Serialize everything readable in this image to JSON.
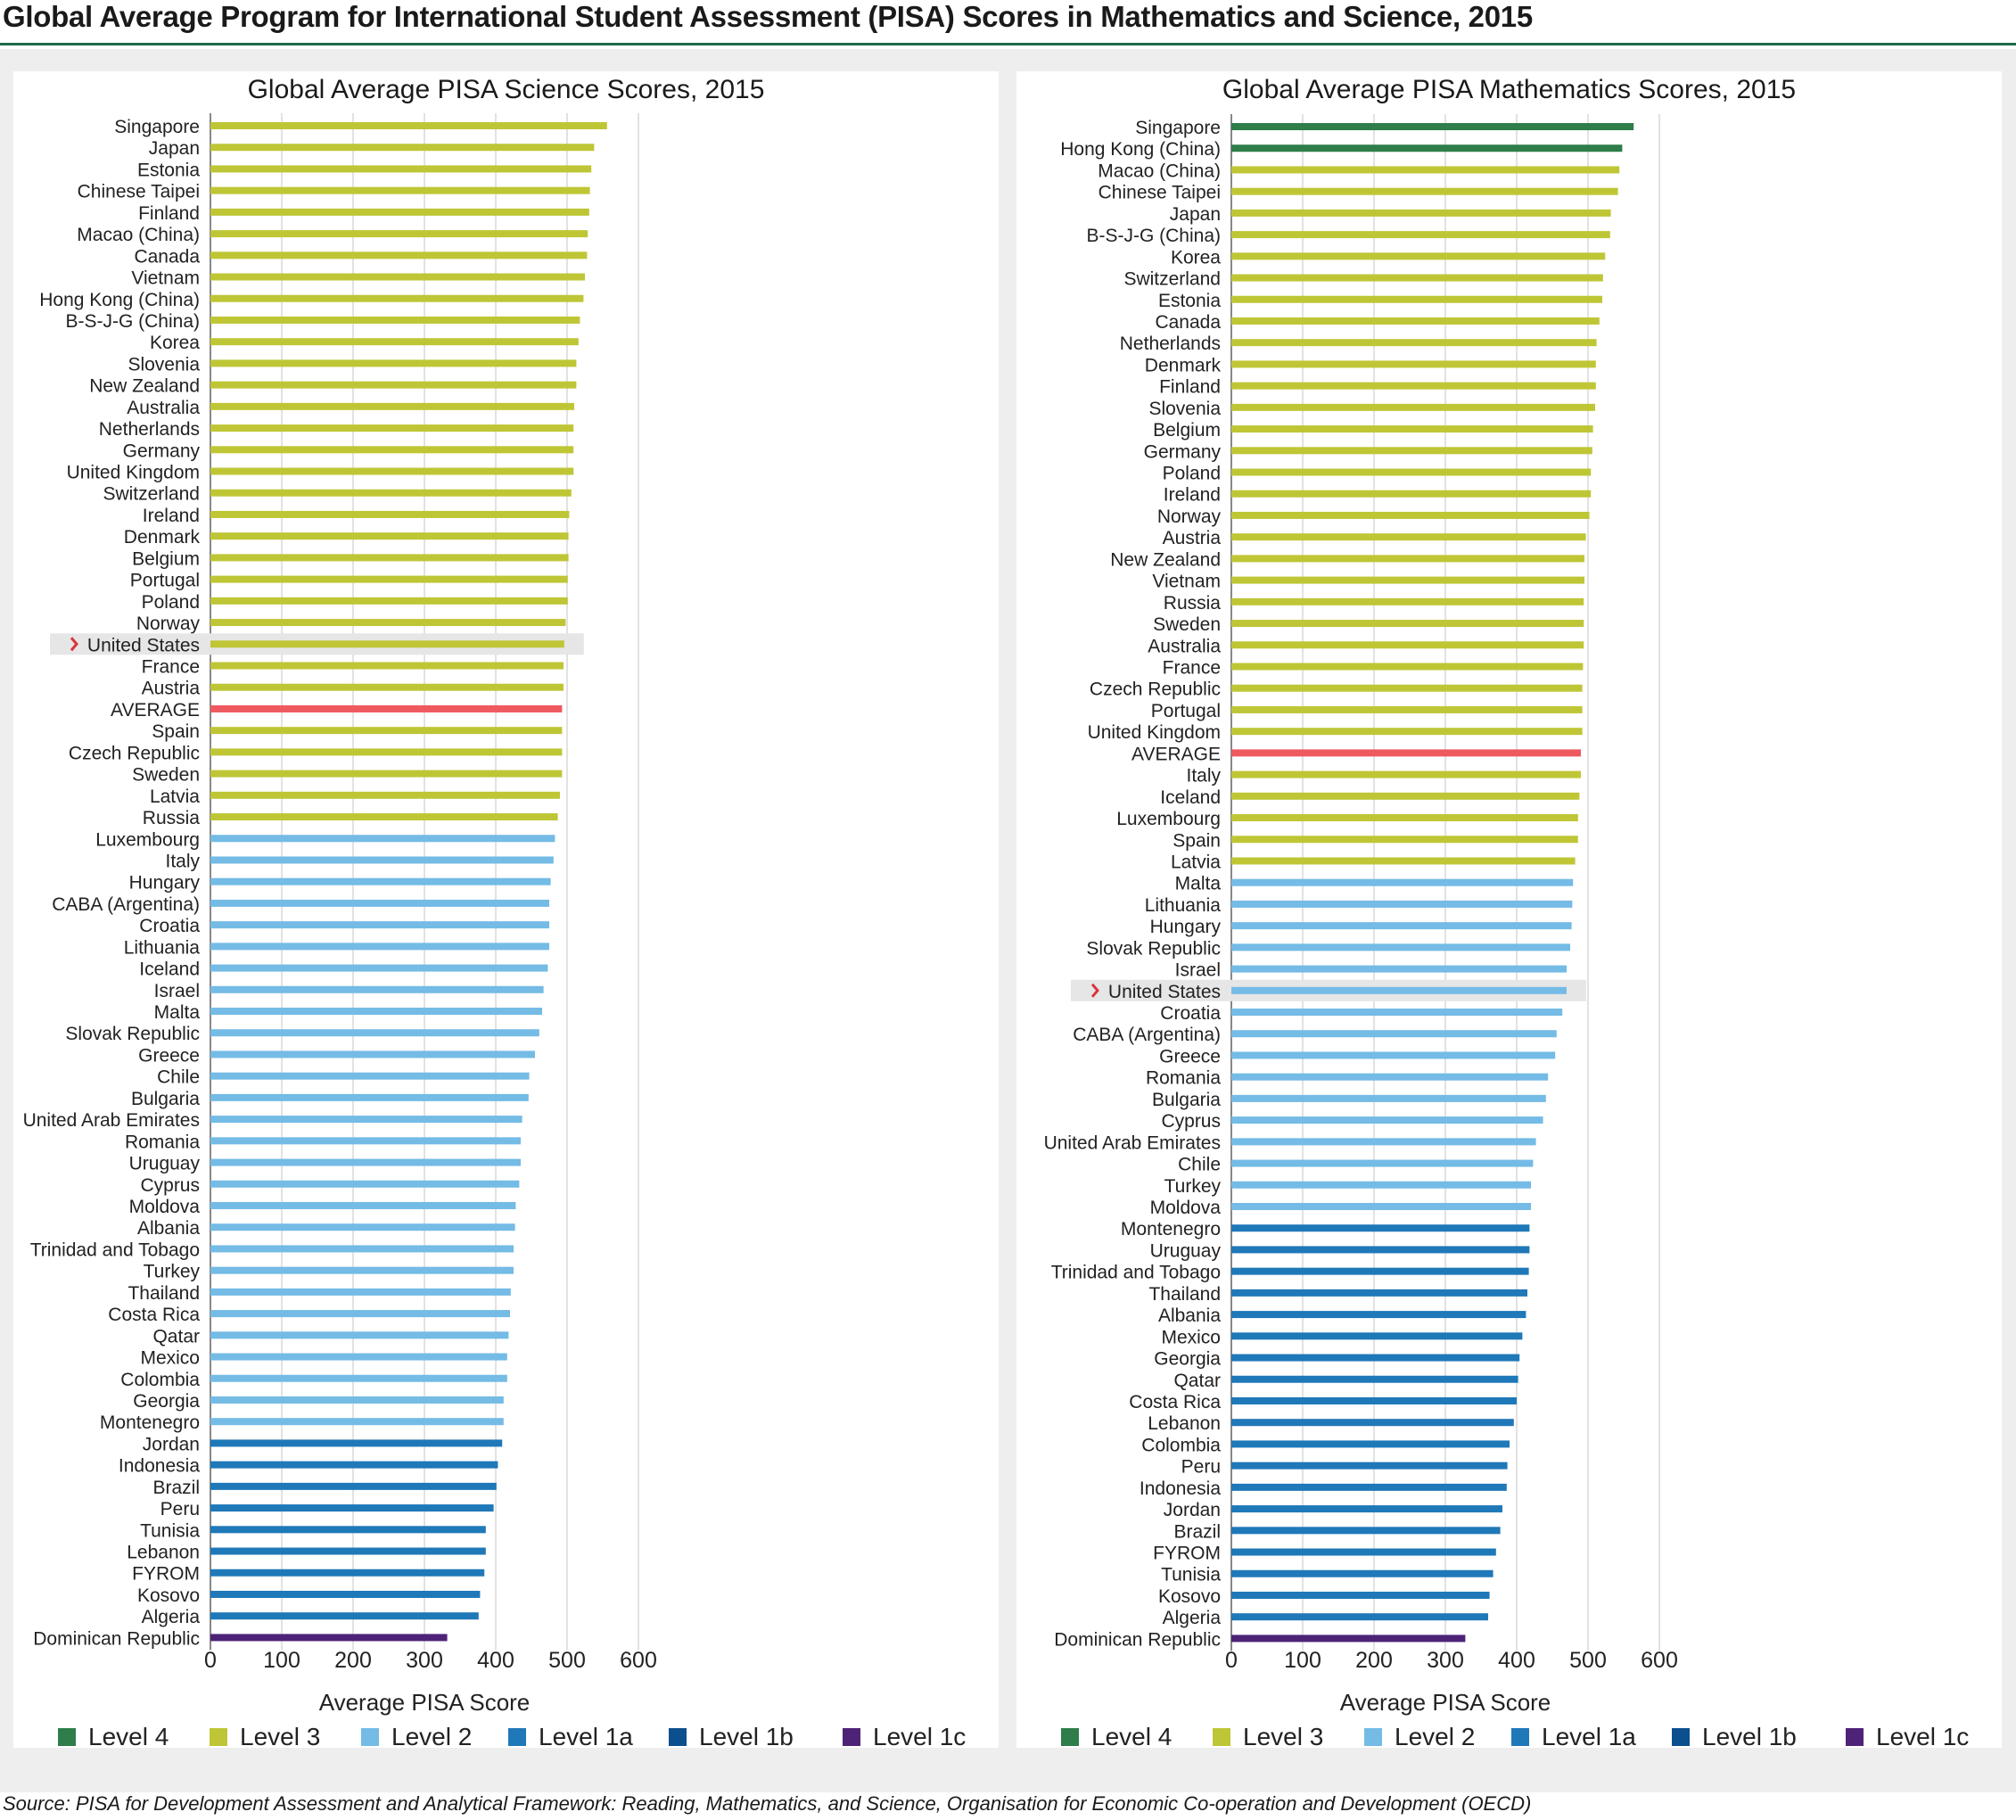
{
  "page": {
    "title": "Global Average Program for International Student Assessment (PISA) Scores in Mathematics and Science, 2015",
    "source": "Source: PISA for Development Assessment and Analytical Framework: Reading, Mathematics, and Science, Organisation for Economic Co-operation and Development (OECD)"
  },
  "colors": {
    "Level 4": "#2e7d4a",
    "Level 3": "#bfc636",
    "Level 2": "#74bbe6",
    "Level 1a": "#1f78b8",
    "Level 1b": "#0c4f8e",
    "Level 1c": "#4e2377",
    "AVERAGE": "#ee5a5f",
    "highlight": "#e6e6e6",
    "marker": "#d9343c"
  },
  "chart_data": [
    {
      "type": "bar",
      "orientation": "horizontal",
      "title": "Global Average PISA Science Scores, 2015",
      "xlabel": "Average PISA Score",
      "xlim": [
        0,
        600
      ],
      "xticks": [
        0,
        100,
        200,
        300,
        400,
        500,
        600
      ],
      "highlight": "United States",
      "legend": [
        "Level 4",
        "Level 3",
        "Level 2",
        "Level 1a",
        "Level 1b",
        "Level 1c"
      ],
      "categories": [
        "Singapore",
        "Japan",
        "Estonia",
        "Chinese Taipei",
        "Finland",
        "Macao (China)",
        "Canada",
        "Vietnam",
        "Hong Kong (China)",
        "B-S-J-G (China)",
        "Korea",
        "Slovenia",
        "New Zealand",
        "Australia",
        "Netherlands",
        "Germany",
        "United Kingdom",
        "Switzerland",
        "Ireland",
        "Denmark",
        "Belgium",
        "Portugal",
        "Poland",
        "Norway",
        "United States",
        "France",
        "Austria",
        "AVERAGE",
        "Spain",
        "Czech Republic",
        "Sweden",
        "Latvia",
        "Russia",
        "Luxembourg",
        "Italy",
        "Hungary",
        "CABA (Argentina)",
        "Croatia",
        "Lithuania",
        "Iceland",
        "Israel",
        "Malta",
        "Slovak Republic",
        "Greece",
        "Chile",
        "Bulgaria",
        "United Arab Emirates",
        "Romania",
        "Uruguay",
        "Cyprus",
        "Moldova",
        "Albania",
        "Trinidad and Tobago",
        "Turkey",
        "Thailand",
        "Costa Rica",
        "Qatar",
        "Mexico",
        "Colombia",
        "Georgia",
        "Montenegro",
        "Jordan",
        "Indonesia",
        "Brazil",
        "Peru",
        "Tunisia",
        "Lebanon",
        "FYROM",
        "Kosovo",
        "Algeria",
        "Dominican Republic"
      ],
      "values": [
        556,
        538,
        534,
        532,
        531,
        529,
        528,
        525,
        523,
        518,
        516,
        513,
        513,
        510,
        509,
        509,
        509,
        506,
        503,
        502,
        502,
        501,
        501,
        498,
        496,
        495,
        495,
        493,
        493,
        493,
        493,
        490,
        487,
        483,
        481,
        477,
        475,
        475,
        475,
        473,
        467,
        465,
        461,
        455,
        447,
        446,
        437,
        435,
        435,
        433,
        428,
        427,
        425,
        425,
        421,
        420,
        418,
        416,
        416,
        411,
        411,
        409,
        403,
        401,
        397,
        386,
        386,
        384,
        378,
        376,
        332
      ],
      "levels": [
        "Level 3",
        "Level 3",
        "Level 3",
        "Level 3",
        "Level 3",
        "Level 3",
        "Level 3",
        "Level 3",
        "Level 3",
        "Level 3",
        "Level 3",
        "Level 3",
        "Level 3",
        "Level 3",
        "Level 3",
        "Level 3",
        "Level 3",
        "Level 3",
        "Level 3",
        "Level 3",
        "Level 3",
        "Level 3",
        "Level 3",
        "Level 3",
        "Level 3",
        "Level 3",
        "Level 3",
        "AVERAGE",
        "Level 3",
        "Level 3",
        "Level 3",
        "Level 3",
        "Level 3",
        "Level 2",
        "Level 2",
        "Level 2",
        "Level 2",
        "Level 2",
        "Level 2",
        "Level 2",
        "Level 2",
        "Level 2",
        "Level 2",
        "Level 2",
        "Level 2",
        "Level 2",
        "Level 2",
        "Level 2",
        "Level 2",
        "Level 2",
        "Level 2",
        "Level 2",
        "Level 2",
        "Level 2",
        "Level 2",
        "Level 2",
        "Level 2",
        "Level 2",
        "Level 2",
        "Level 2",
        "Level 2",
        "Level 1a",
        "Level 1a",
        "Level 1a",
        "Level 1a",
        "Level 1a",
        "Level 1a",
        "Level 1a",
        "Level 1a",
        "Level 1a",
        "Level 1c"
      ]
    },
    {
      "type": "bar",
      "orientation": "horizontal",
      "title": "Global Average PISA Mathematics Scores, 2015",
      "xlabel": "Average PISA Score",
      "xlim": [
        0,
        600
      ],
      "xticks": [
        0,
        100,
        200,
        300,
        400,
        500,
        600
      ],
      "highlight": "United States",
      "legend": [
        "Level 4",
        "Level 3",
        "Level 2",
        "Level 1a",
        "Level 1b",
        "Level 1c"
      ],
      "categories": [
        "Singapore",
        "Hong Kong (China)",
        "Macao (China)",
        "Chinese Taipei",
        "Japan",
        "B-S-J-G (China)",
        "Korea",
        "Switzerland",
        "Estonia",
        "Canada",
        "Netherlands",
        "Denmark",
        "Finland",
        "Slovenia",
        "Belgium",
        "Germany",
        "Poland",
        "Ireland",
        "Norway",
        "Austria",
        "New Zealand",
        "Vietnam",
        "Russia",
        "Sweden",
        "Australia",
        "France",
        "Czech Republic",
        "Portugal",
        "United Kingdom",
        "AVERAGE",
        "Italy",
        "Iceland",
        "Luxembourg",
        "Spain",
        "Latvia",
        "Malta",
        "Lithuania",
        "Hungary",
        "Slovak Republic",
        "Israel",
        "United States",
        "Croatia",
        "CABA (Argentina)",
        "Greece",
        "Romania",
        "Bulgaria",
        "Cyprus",
        "United Arab Emirates",
        "Chile",
        "Turkey",
        "Moldova",
        "Montenegro",
        "Uruguay",
        "Trinidad and Tobago",
        "Thailand",
        "Albania",
        "Mexico",
        "Georgia",
        "Qatar",
        "Costa Rica",
        "Lebanon",
        "Colombia",
        "Peru",
        "Indonesia",
        "Jordan",
        "Brazil",
        "FYROM",
        "Tunisia",
        "Kosovo",
        "Algeria",
        "Dominican Republic"
      ],
      "values": [
        564,
        548,
        544,
        542,
        532,
        531,
        524,
        521,
        520,
        516,
        512,
        511,
        511,
        510,
        507,
        506,
        504,
        504,
        502,
        497,
        495,
        495,
        494,
        494,
        494,
        493,
        492,
        492,
        492,
        490,
        490,
        488,
        486,
        486,
        482,
        479,
        478,
        477,
        475,
        470,
        470,
        464,
        456,
        454,
        444,
        441,
        437,
        427,
        423,
        420,
        420,
        418,
        418,
        417,
        415,
        413,
        408,
        404,
        402,
        400,
        396,
        390,
        387,
        386,
        380,
        377,
        371,
        367,
        362,
        360,
        328
      ],
      "levels": [
        "Level 4",
        "Level 4",
        "Level 3",
        "Level 3",
        "Level 3",
        "Level 3",
        "Level 3",
        "Level 3",
        "Level 3",
        "Level 3",
        "Level 3",
        "Level 3",
        "Level 3",
        "Level 3",
        "Level 3",
        "Level 3",
        "Level 3",
        "Level 3",
        "Level 3",
        "Level 3",
        "Level 3",
        "Level 3",
        "Level 3",
        "Level 3",
        "Level 3",
        "Level 3",
        "Level 3",
        "Level 3",
        "Level 3",
        "AVERAGE",
        "Level 3",
        "Level 3",
        "Level 3",
        "Level 3",
        "Level 3",
        "Level 2",
        "Level 2",
        "Level 2",
        "Level 2",
        "Level 2",
        "Level 2",
        "Level 2",
        "Level 2",
        "Level 2",
        "Level 2",
        "Level 2",
        "Level 2",
        "Level 2",
        "Level 2",
        "Level 2",
        "Level 2",
        "Level 1a",
        "Level 1a",
        "Level 1a",
        "Level 1a",
        "Level 1a",
        "Level 1a",
        "Level 1a",
        "Level 1a",
        "Level 1a",
        "Level 1a",
        "Level 1a",
        "Level 1a",
        "Level 1a",
        "Level 1a",
        "Level 1a",
        "Level 1a",
        "Level 1a",
        "Level 1a",
        "Level 1a",
        "Level 1c"
      ]
    }
  ]
}
